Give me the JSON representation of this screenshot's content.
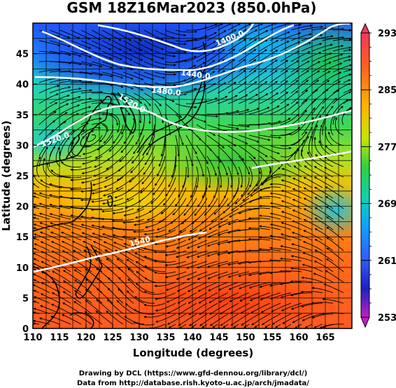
{
  "title": "GSM 18Z16Mar2023 (850.0hPa)",
  "map": {
    "lon_range": [
      110,
      170
    ],
    "lat_range": [
      0,
      50
    ],
    "x_ticks": [
      "110",
      "115",
      "120",
      "125",
      "130",
      "135",
      "140",
      "145",
      "150",
      "155",
      "160",
      "165"
    ],
    "y_ticks": [
      "0",
      "5",
      "10",
      "15",
      "20",
      "25",
      "30",
      "35",
      "40",
      "45"
    ],
    "xlabel": "Longitude (degrees)",
    "ylabel": "Latitude (degrees)"
  },
  "colorbar": {
    "labels": [
      "293",
      "285",
      "277",
      "269",
      "261",
      "253"
    ],
    "colors": [
      "#f0385a",
      "#ff7a10",
      "#ffc000",
      "#c8e600",
      "#30d040",
      "#10d0b0",
      "#10a0ff",
      "#3060ff",
      "#2020c0",
      "#c020c0"
    ]
  },
  "contours": {
    "labels": [
      "1400.0",
      "1440.0",
      "1480.0",
      "1520.0",
      "1520.0",
      "1540"
    ]
  },
  "credits": {
    "line1": "Drawing by DCL (https://www.gfd-dennou.org/library/dcl/)",
    "line2": "Data from http://database.rish.kyoto-u.ac.jp/arch/jmadata/"
  }
}
